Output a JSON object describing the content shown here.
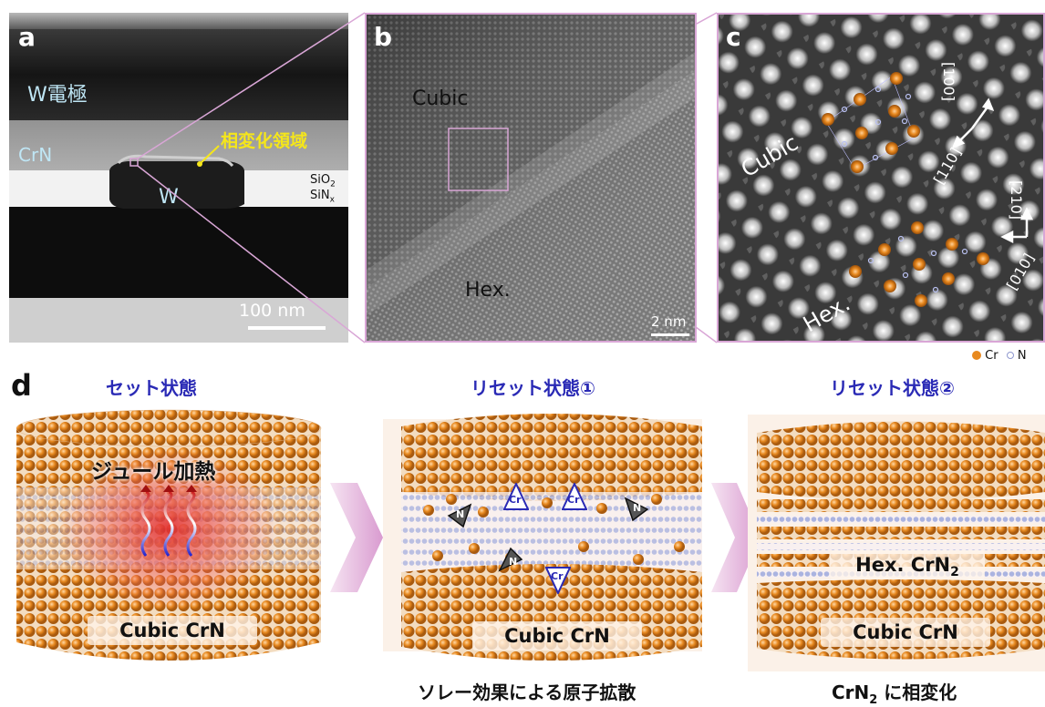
{
  "panel_a": {
    "label": "a",
    "w_electrode": "W電極",
    "crn": "CrN",
    "phase_region": "相変化領域",
    "w": "W",
    "sio2": "SiO",
    "sio2_sub": "2",
    "sinx": "SiN",
    "sinx_sub": "x",
    "scale": "100 nm"
  },
  "panel_b": {
    "label": "b",
    "cubic": "Cubic",
    "hex": "Hex.",
    "scale": "2 nm"
  },
  "panel_c": {
    "label": "c",
    "cubic": "Cubic",
    "hex": "Hex.",
    "dir_100": "[100]",
    "dir_110": "[110]",
    "dir_210": "[210]",
    "dir_010": "[010]",
    "legend_cr": "Cr",
    "legend_n": "N"
  },
  "panel_d": {
    "label": "d",
    "set_title": "セット状態",
    "reset1_title": "リセット状態①",
    "reset2_title": "リセット状態②",
    "joule": "ジュール加熱",
    "cubic_crn": "Cubic CrN",
    "hex_crn2": "Hex. CrN",
    "hex_crn2_sub": "2",
    "soret": "ソレー効果による原子拡散",
    "phase_change_prefix": "CrN",
    "phase_change_sub": "2",
    "phase_change_suffix": " に相変化",
    "arrow_cr": "Cr",
    "arrow_n": "N"
  },
  "colors": {
    "cr_atom": "#e8891f",
    "n_atom": "#9fa8d8",
    "zoom_line": "#d9a6d6",
    "heading_blue": "#2a2ab5",
    "highlight_yellow": "#f5e61a",
    "label_cyan": "#bfe6f5"
  }
}
